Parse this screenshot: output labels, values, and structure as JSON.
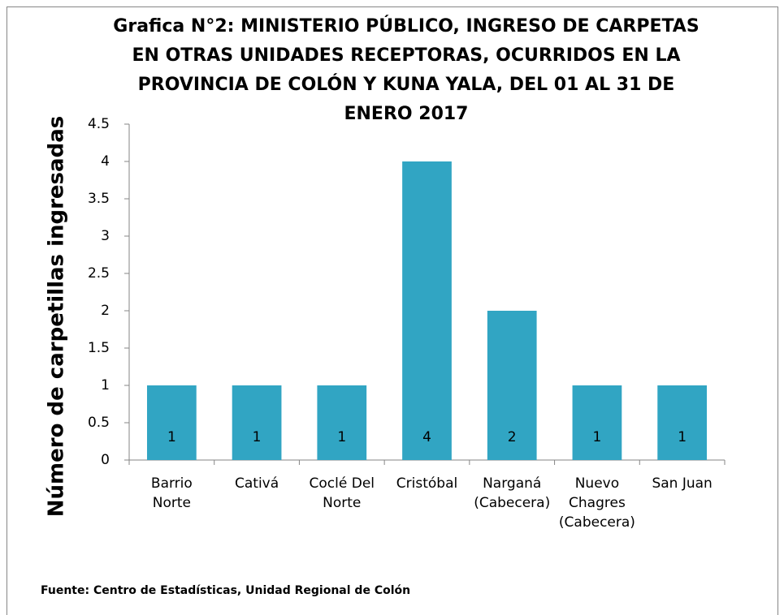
{
  "chart_data": {
    "type": "bar",
    "title": [
      "Grafica N°2: MINISTERIO PÚBLICO, INGRESO DE CARPETAS",
      "EN OTRAS UNIDADES RECEPTORAS, OCURRIDOS EN LA",
      "PROVINCIA DE COLÓN Y KUNA YALA, DEL 01 AL 31 DE",
      "ENERO 2017"
    ],
    "y_label": "Número de carpetillas  ingresadas",
    "source": "Fuente: Centro de Estadísticas, Unidad Regional de Colón",
    "categories": [
      [
        "Barrio",
        "Norte"
      ],
      [
        "Cativá"
      ],
      [
        "Coclé Del",
        "Norte"
      ],
      [
        "Cristóbal"
      ],
      [
        "Narganá",
        "(Cabecera)"
      ],
      [
        "Nuevo",
        "Chagres",
        "(Cabecera)"
      ],
      [
        "San Juan"
      ]
    ],
    "values": [
      1,
      1,
      1,
      4,
      2,
      1,
      1
    ],
    "color": "#31a5c3",
    "ylim": [
      0,
      4.5
    ],
    "yticks": [
      0,
      0.5,
      1,
      1.5,
      2,
      2.5,
      3,
      3.5,
      4,
      4.5
    ],
    "grid": false
  }
}
